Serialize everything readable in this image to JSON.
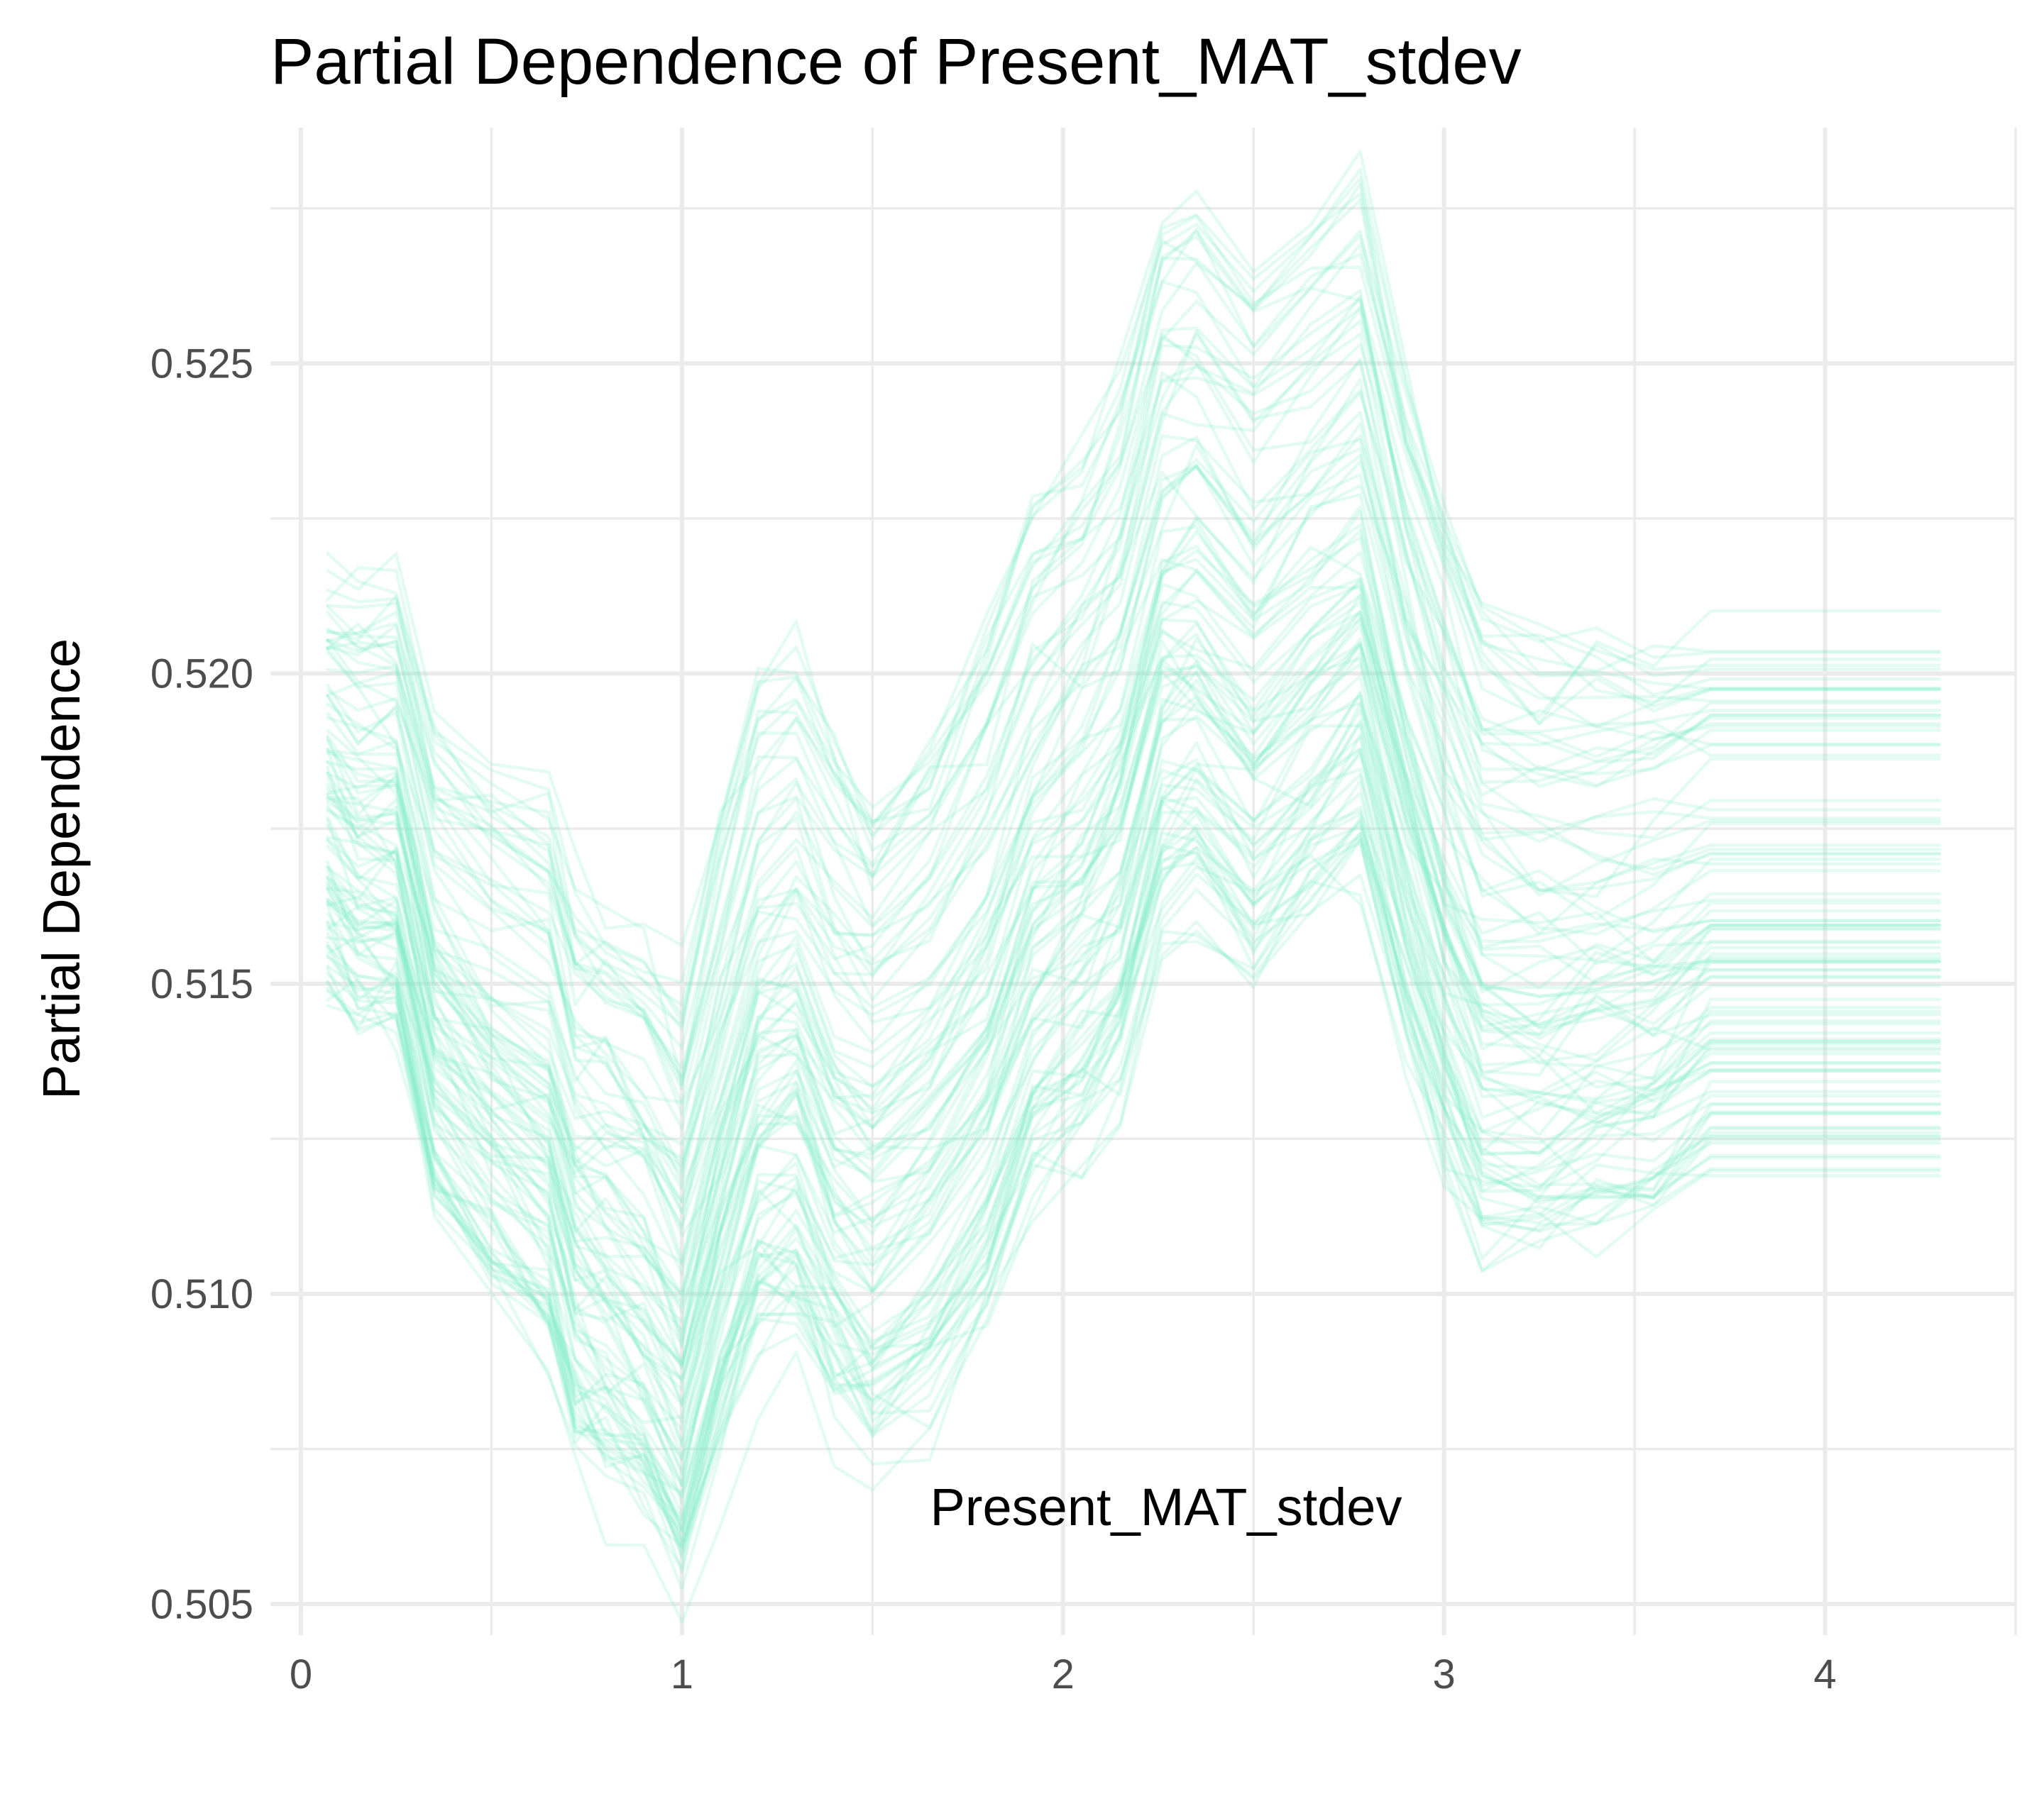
{
  "chart_data": {
    "type": "line",
    "title": "Partial Dependence of Present_MAT_stdev",
    "xlabel": "Present_MAT_stdev",
    "ylabel": "Partial Dependence",
    "xlim": [
      -0.08,
      4.5
    ],
    "ylim": [
      0.5045,
      0.5288
    ],
    "x_ticks": [
      0,
      1,
      2,
      3,
      4
    ],
    "x_tick_labels": [
      "0",
      "1",
      "2",
      "3",
      "4"
    ],
    "y_ticks": [
      0.505,
      0.51,
      0.515,
      0.52,
      0.525
    ],
    "y_tick_labels": [
      "0.505",
      "0.510",
      "0.515",
      "0.520",
      "0.525"
    ],
    "x_minor_ticks": [
      0.5,
      1.5,
      2.5,
      3.5,
      4.5
    ],
    "y_minor_ticks": [
      0.5075,
      0.5125,
      0.5175,
      0.5225,
      0.5275
    ],
    "grid": true,
    "legend": "none",
    "line_color": "#7fefc8",
    "line_opacity": 0.22,
    "series_count": 100,
    "x": [
      0.07,
      0.15,
      0.25,
      0.35,
      0.5,
      0.65,
      0.72,
      0.8,
      0.9,
      1.0,
      1.1,
      1.2,
      1.3,
      1.4,
      1.5,
      1.65,
      1.8,
      1.92,
      2.05,
      2.15,
      2.26,
      2.35,
      2.5,
      2.65,
      2.78,
      2.9,
      3.0,
      3.1,
      3.25,
      3.4,
      3.55,
      3.7,
      4.3
    ],
    "mean_curve": [
      0.5177,
      0.5172,
      0.5172,
      0.5146,
      0.5135,
      0.5127,
      0.5111,
      0.5108,
      0.5102,
      0.5091,
      0.5115,
      0.5135,
      0.5138,
      0.5125,
      0.5118,
      0.5127,
      0.5142,
      0.5162,
      0.517,
      0.518,
      0.5205,
      0.5208,
      0.5197,
      0.5207,
      0.5215,
      0.5185,
      0.5165,
      0.515,
      0.5148,
      0.515,
      0.5152,
      0.5157,
      0.5157
    ],
    "offset_range": [
      -0.0045,
      0.0072
    ],
    "noise_sd": 0.0009
  }
}
